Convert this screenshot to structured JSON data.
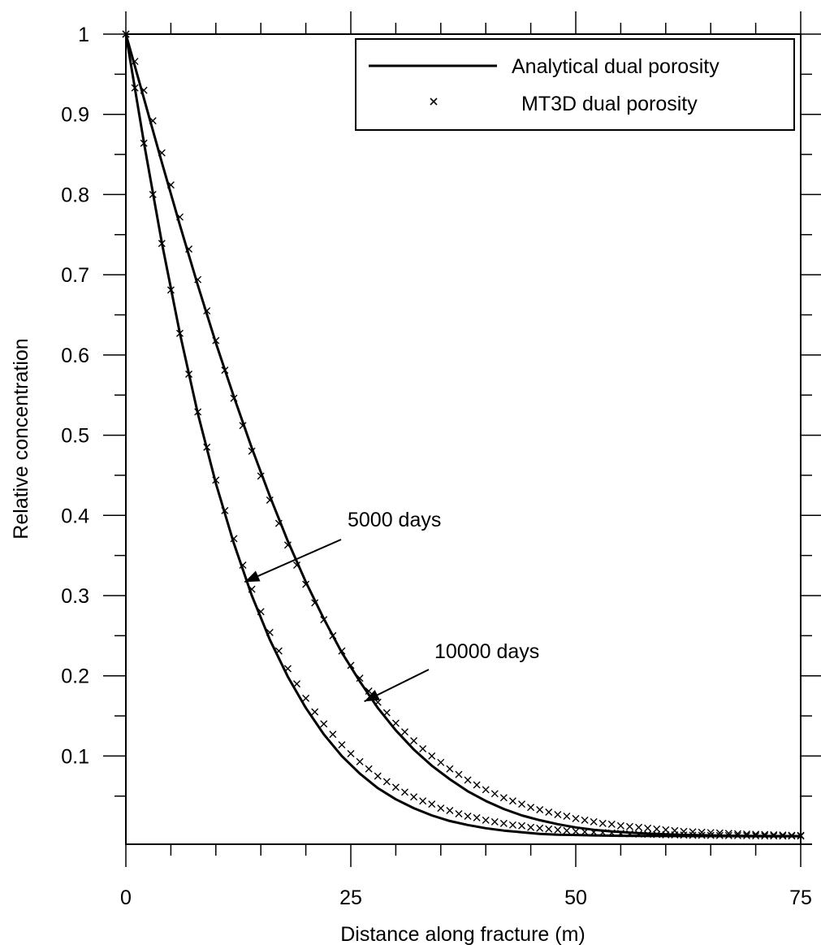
{
  "chart_data": {
    "type": "line",
    "xlabel": "Distance along fracture (m)",
    "ylabel": "Relative concentration",
    "xlim": [
      0,
      76
    ],
    "ylim": [
      -0.01,
      1.0
    ],
    "x_ticks": [
      0,
      25,
      50,
      75
    ],
    "x_tick_labels": [
      "0",
      "25",
      "50",
      "75"
    ],
    "y_ticks": [
      0.1,
      0.2,
      0.3,
      0.4,
      0.5,
      0.6,
      0.7,
      0.8,
      0.9,
      1.0
    ],
    "y_tick_labels": [
      "0.1",
      "0.2",
      "0.3",
      "0.4",
      "0.5",
      "0.6",
      "0.7",
      "0.8",
      "0.9",
      "1"
    ],
    "grid": false,
    "legend_position": "top-right",
    "legend": [
      {
        "label": "Analytical dual porosity",
        "marker": "line"
      },
      {
        "label": "MT3D dual porosity",
        "marker": "x"
      }
    ],
    "series": [
      {
        "name": "Analytical dual porosity",
        "time": "5000 days",
        "style": "line",
        "x": [
          0,
          2,
          4,
          6,
          8,
          10,
          12,
          14,
          16,
          18,
          20,
          22,
          24,
          26,
          28,
          30,
          32,
          34,
          36,
          38,
          40,
          42,
          44,
          46,
          48,
          50,
          52,
          55,
          60,
          65,
          70,
          75
        ],
        "y": [
          1.0,
          0.865,
          0.74,
          0.627,
          0.527,
          0.44,
          0.365,
          0.3,
          0.245,
          0.199,
          0.16,
          0.127,
          0.1,
          0.078,
          0.06,
          0.046,
          0.035,
          0.026,
          0.019,
          0.014,
          0.01,
          0.007,
          0.005,
          0.003,
          0.002,
          0.0015,
          0.001,
          0.0005,
          0.0002,
          0.0001,
          0.0,
          0.0
        ]
      },
      {
        "name": "Analytical dual porosity",
        "time": "10000 days",
        "style": "line",
        "x": [
          0,
          2,
          4,
          6,
          8,
          10,
          12,
          14,
          16,
          18,
          20,
          22,
          24,
          26,
          28,
          30,
          32,
          34,
          36,
          38,
          40,
          42,
          44,
          46,
          48,
          50,
          52,
          54,
          56,
          58,
          60,
          62,
          64,
          66,
          68,
          70,
          72,
          75
        ],
        "y": [
          1.0,
          0.92,
          0.84,
          0.762,
          0.687,
          0.615,
          0.548,
          0.484,
          0.424,
          0.368,
          0.317,
          0.271,
          0.229,
          0.193,
          0.16,
          0.132,
          0.108,
          0.088,
          0.071,
          0.056,
          0.044,
          0.034,
          0.026,
          0.02,
          0.015,
          0.011,
          0.008,
          0.006,
          0.0045,
          0.0033,
          0.0024,
          0.0017,
          0.0012,
          0.0008,
          0.0005,
          0.0003,
          0.0002,
          0.0001
        ]
      },
      {
        "name": "MT3D dual porosity",
        "time": "5000 days",
        "style": "markers",
        "x": [
          0,
          1,
          2,
          3,
          4,
          5,
          6,
          7,
          8,
          9,
          10,
          11,
          12,
          13,
          14,
          15,
          16,
          17,
          18,
          19,
          20,
          21,
          22,
          23,
          24,
          25,
          26,
          27,
          28,
          29,
          30,
          31,
          32,
          33,
          34,
          35,
          36,
          37,
          38,
          39,
          40,
          41,
          42,
          43,
          44,
          45,
          46,
          47,
          48,
          49,
          50,
          51,
          52,
          53,
          54,
          55,
          56,
          57,
          58,
          59,
          60,
          61,
          62,
          63,
          64,
          65,
          66,
          67,
          68,
          69,
          70,
          71,
          72,
          73,
          74,
          75
        ],
        "y": [
          1.0,
          0.933,
          0.864,
          0.8,
          0.739,
          0.681,
          0.627,
          0.576,
          0.529,
          0.485,
          0.444,
          0.406,
          0.371,
          0.338,
          0.308,
          0.28,
          0.254,
          0.231,
          0.209,
          0.19,
          0.172,
          0.155,
          0.14,
          0.127,
          0.114,
          0.103,
          0.093,
          0.084,
          0.075,
          0.068,
          0.061,
          0.055,
          0.049,
          0.044,
          0.04,
          0.035,
          0.032,
          0.028,
          0.025,
          0.023,
          0.02,
          0.018,
          0.016,
          0.014,
          0.013,
          0.011,
          0.01,
          0.009,
          0.008,
          0.007,
          0.006,
          0.0055,
          0.005,
          0.0045,
          0.004,
          0.0035,
          0.003,
          0.0027,
          0.0024,
          0.0021,
          0.0018,
          0.0016,
          0.0014,
          0.0012,
          0.0011,
          0.001,
          0.0009,
          0.0008,
          0.0007,
          0.0006,
          0.0005,
          0.0004,
          0.0004,
          0.0003,
          0.0003,
          0.0002
        ]
      },
      {
        "name": "MT3D dual porosity",
        "time": "10000 days",
        "style": "markers",
        "x": [
          0,
          1,
          2,
          3,
          4,
          5,
          6,
          7,
          8,
          9,
          10,
          11,
          12,
          13,
          14,
          15,
          16,
          17,
          18,
          19,
          20,
          21,
          22,
          23,
          24,
          25,
          26,
          27,
          28,
          29,
          30,
          31,
          32,
          33,
          34,
          35,
          36,
          37,
          38,
          39,
          40,
          41,
          42,
          43,
          44,
          45,
          46,
          47,
          48,
          49,
          50,
          51,
          52,
          53,
          54,
          55,
          56,
          57,
          58,
          59,
          60,
          61,
          62,
          63,
          64,
          65,
          66,
          67,
          68,
          69,
          70,
          71,
          72,
          73,
          74,
          75
        ],
        "y": [
          1.0,
          0.966,
          0.93,
          0.892,
          0.852,
          0.812,
          0.772,
          0.732,
          0.694,
          0.655,
          0.618,
          0.581,
          0.546,
          0.512,
          0.48,
          0.449,
          0.419,
          0.39,
          0.363,
          0.338,
          0.314,
          0.291,
          0.27,
          0.25,
          0.231,
          0.213,
          0.197,
          0.181,
          0.167,
          0.154,
          0.141,
          0.13,
          0.119,
          0.109,
          0.1,
          0.092,
          0.084,
          0.077,
          0.07,
          0.064,
          0.058,
          0.053,
          0.048,
          0.044,
          0.04,
          0.036,
          0.033,
          0.03,
          0.027,
          0.025,
          0.022,
          0.02,
          0.018,
          0.016,
          0.015,
          0.013,
          0.012,
          0.011,
          0.01,
          0.009,
          0.008,
          0.007,
          0.006,
          0.0055,
          0.005,
          0.0045,
          0.004,
          0.0035,
          0.003,
          0.0027,
          0.0024,
          0.0021,
          0.0018,
          0.0015,
          0.0012,
          0.001
        ]
      }
    ],
    "annotations": [
      {
        "text": "5000 days",
        "arrow_to": [
          13.2,
          0.317
        ]
      },
      {
        "text": "10000 days",
        "arrow_to": [
          26.5,
          0.168
        ]
      }
    ]
  }
}
